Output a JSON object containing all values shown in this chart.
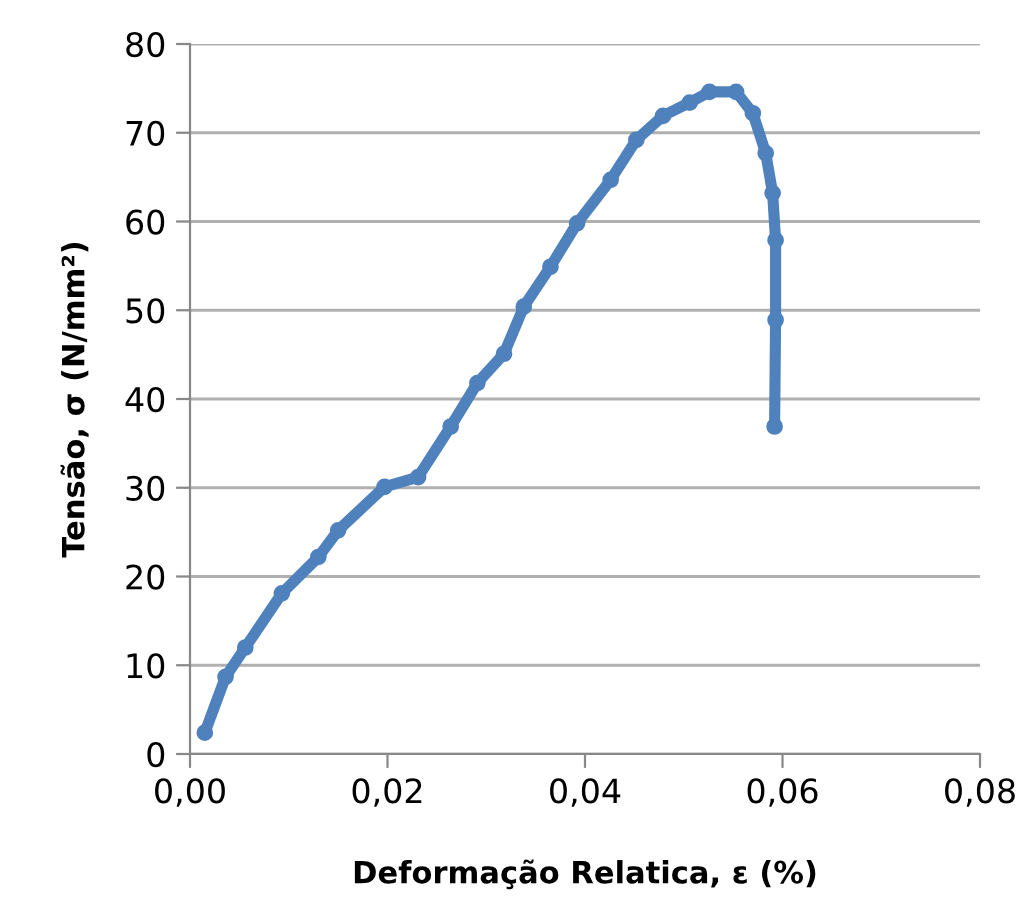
{
  "chart_data": {
    "type": "line",
    "xlabel": "Deformação Relatica, ε (%)",
    "ylabel": "Tensão, σ (N/mm²)",
    "x": [
      0.0015,
      0.0036,
      0.0056,
      0.0093,
      0.013,
      0.015,
      0.0197,
      0.0231,
      0.0264,
      0.0291,
      0.0318,
      0.0338,
      0.0365,
      0.0392,
      0.0426,
      0.0452,
      0.0479,
      0.0506,
      0.0526,
      0.0553,
      0.057,
      0.0583,
      0.059,
      0.0593,
      0.0593,
      0.0592
    ],
    "series": [
      {
        "color": "#4f81bd",
        "values": [
          2.4,
          8.7,
          12.0,
          18.1,
          22.2,
          25.2,
          30.1,
          31.2,
          36.9,
          41.8,
          45.1,
          50.4,
          54.9,
          59.8,
          64.7,
          69.2,
          71.9,
          73.4,
          74.6,
          74.6,
          72.2,
          67.7,
          63.2,
          57.9,
          48.9,
          36.9
        ]
      }
    ],
    "xlim": [
      0,
      0.08
    ],
    "xticks": [
      {
        "value": 0,
        "label": "0,00"
      },
      {
        "value": 0.02,
        "label": "0,02"
      },
      {
        "value": 0.04,
        "label": "0,04"
      },
      {
        "value": 0.06,
        "label": "0,06"
      },
      {
        "value": 0.08,
        "label": "0,08"
      }
    ],
    "ylim": [
      0,
      80
    ],
    "yticks": [
      0,
      10,
      20,
      30,
      40,
      50,
      60,
      70,
      80
    ],
    "grid": "y",
    "marker": "circle",
    "line_style": "solid"
  }
}
